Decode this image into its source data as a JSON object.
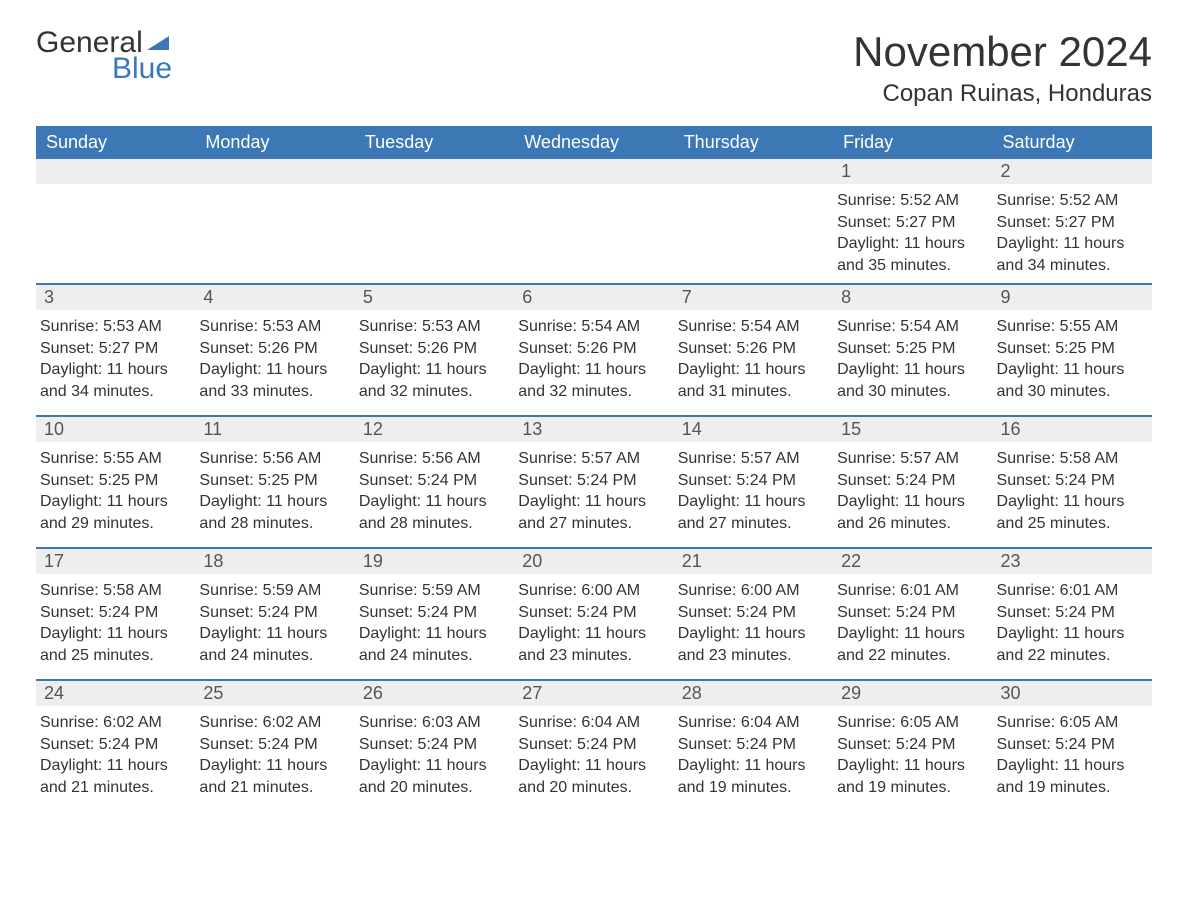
{
  "brand": {
    "word1": "General",
    "word2": "Blue"
  },
  "title": "November 2024",
  "location": "Copan Ruinas, Honduras",
  "colors": {
    "header_bg": "#3b78b5",
    "header_text": "#ffffff",
    "daynum_bg": "#eeeeee",
    "daynum_border": "#3b78b5",
    "body_text": "#333333",
    "page_bg": "#ffffff"
  },
  "weekdays": [
    "Sunday",
    "Monday",
    "Tuesday",
    "Wednesday",
    "Thursday",
    "Friday",
    "Saturday"
  ],
  "labels": {
    "sunrise": "Sunrise",
    "sunset": "Sunset",
    "daylight": "Daylight"
  },
  "weeks": [
    [
      null,
      null,
      null,
      null,
      null,
      {
        "day": "1",
        "sunrise": "5:52 AM",
        "sunset": "5:27 PM",
        "daylight": "11 hours and 35 minutes."
      },
      {
        "day": "2",
        "sunrise": "5:52 AM",
        "sunset": "5:27 PM",
        "daylight": "11 hours and 34 minutes."
      }
    ],
    [
      {
        "day": "3",
        "sunrise": "5:53 AM",
        "sunset": "5:27 PM",
        "daylight": "11 hours and 34 minutes."
      },
      {
        "day": "4",
        "sunrise": "5:53 AM",
        "sunset": "5:26 PM",
        "daylight": "11 hours and 33 minutes."
      },
      {
        "day": "5",
        "sunrise": "5:53 AM",
        "sunset": "5:26 PM",
        "daylight": "11 hours and 32 minutes."
      },
      {
        "day": "6",
        "sunrise": "5:54 AM",
        "sunset": "5:26 PM",
        "daylight": "11 hours and 32 minutes."
      },
      {
        "day": "7",
        "sunrise": "5:54 AM",
        "sunset": "5:26 PM",
        "daylight": "11 hours and 31 minutes."
      },
      {
        "day": "8",
        "sunrise": "5:54 AM",
        "sunset": "5:25 PM",
        "daylight": "11 hours and 30 minutes."
      },
      {
        "day": "9",
        "sunrise": "5:55 AM",
        "sunset": "5:25 PM",
        "daylight": "11 hours and 30 minutes."
      }
    ],
    [
      {
        "day": "10",
        "sunrise": "5:55 AM",
        "sunset": "5:25 PM",
        "daylight": "11 hours and 29 minutes."
      },
      {
        "day": "11",
        "sunrise": "5:56 AM",
        "sunset": "5:25 PM",
        "daylight": "11 hours and 28 minutes."
      },
      {
        "day": "12",
        "sunrise": "5:56 AM",
        "sunset": "5:24 PM",
        "daylight": "11 hours and 28 minutes."
      },
      {
        "day": "13",
        "sunrise": "5:57 AM",
        "sunset": "5:24 PM",
        "daylight": "11 hours and 27 minutes."
      },
      {
        "day": "14",
        "sunrise": "5:57 AM",
        "sunset": "5:24 PM",
        "daylight": "11 hours and 27 minutes."
      },
      {
        "day": "15",
        "sunrise": "5:57 AM",
        "sunset": "5:24 PM",
        "daylight": "11 hours and 26 minutes."
      },
      {
        "day": "16",
        "sunrise": "5:58 AM",
        "sunset": "5:24 PM",
        "daylight": "11 hours and 25 minutes."
      }
    ],
    [
      {
        "day": "17",
        "sunrise": "5:58 AM",
        "sunset": "5:24 PM",
        "daylight": "11 hours and 25 minutes."
      },
      {
        "day": "18",
        "sunrise": "5:59 AM",
        "sunset": "5:24 PM",
        "daylight": "11 hours and 24 minutes."
      },
      {
        "day": "19",
        "sunrise": "5:59 AM",
        "sunset": "5:24 PM",
        "daylight": "11 hours and 24 minutes."
      },
      {
        "day": "20",
        "sunrise": "6:00 AM",
        "sunset": "5:24 PM",
        "daylight": "11 hours and 23 minutes."
      },
      {
        "day": "21",
        "sunrise": "6:00 AM",
        "sunset": "5:24 PM",
        "daylight": "11 hours and 23 minutes."
      },
      {
        "day": "22",
        "sunrise": "6:01 AM",
        "sunset": "5:24 PM",
        "daylight": "11 hours and 22 minutes."
      },
      {
        "day": "23",
        "sunrise": "6:01 AM",
        "sunset": "5:24 PM",
        "daylight": "11 hours and 22 minutes."
      }
    ],
    [
      {
        "day": "24",
        "sunrise": "6:02 AM",
        "sunset": "5:24 PM",
        "daylight": "11 hours and 21 minutes."
      },
      {
        "day": "25",
        "sunrise": "6:02 AM",
        "sunset": "5:24 PM",
        "daylight": "11 hours and 21 minutes."
      },
      {
        "day": "26",
        "sunrise": "6:03 AM",
        "sunset": "5:24 PM",
        "daylight": "11 hours and 20 minutes."
      },
      {
        "day": "27",
        "sunrise": "6:04 AM",
        "sunset": "5:24 PM",
        "daylight": "11 hours and 20 minutes."
      },
      {
        "day": "28",
        "sunrise": "6:04 AM",
        "sunset": "5:24 PM",
        "daylight": "11 hours and 19 minutes."
      },
      {
        "day": "29",
        "sunrise": "6:05 AM",
        "sunset": "5:24 PM",
        "daylight": "11 hours and 19 minutes."
      },
      {
        "day": "30",
        "sunrise": "6:05 AM",
        "sunset": "5:24 PM",
        "daylight": "11 hours and 19 minutes."
      }
    ]
  ]
}
